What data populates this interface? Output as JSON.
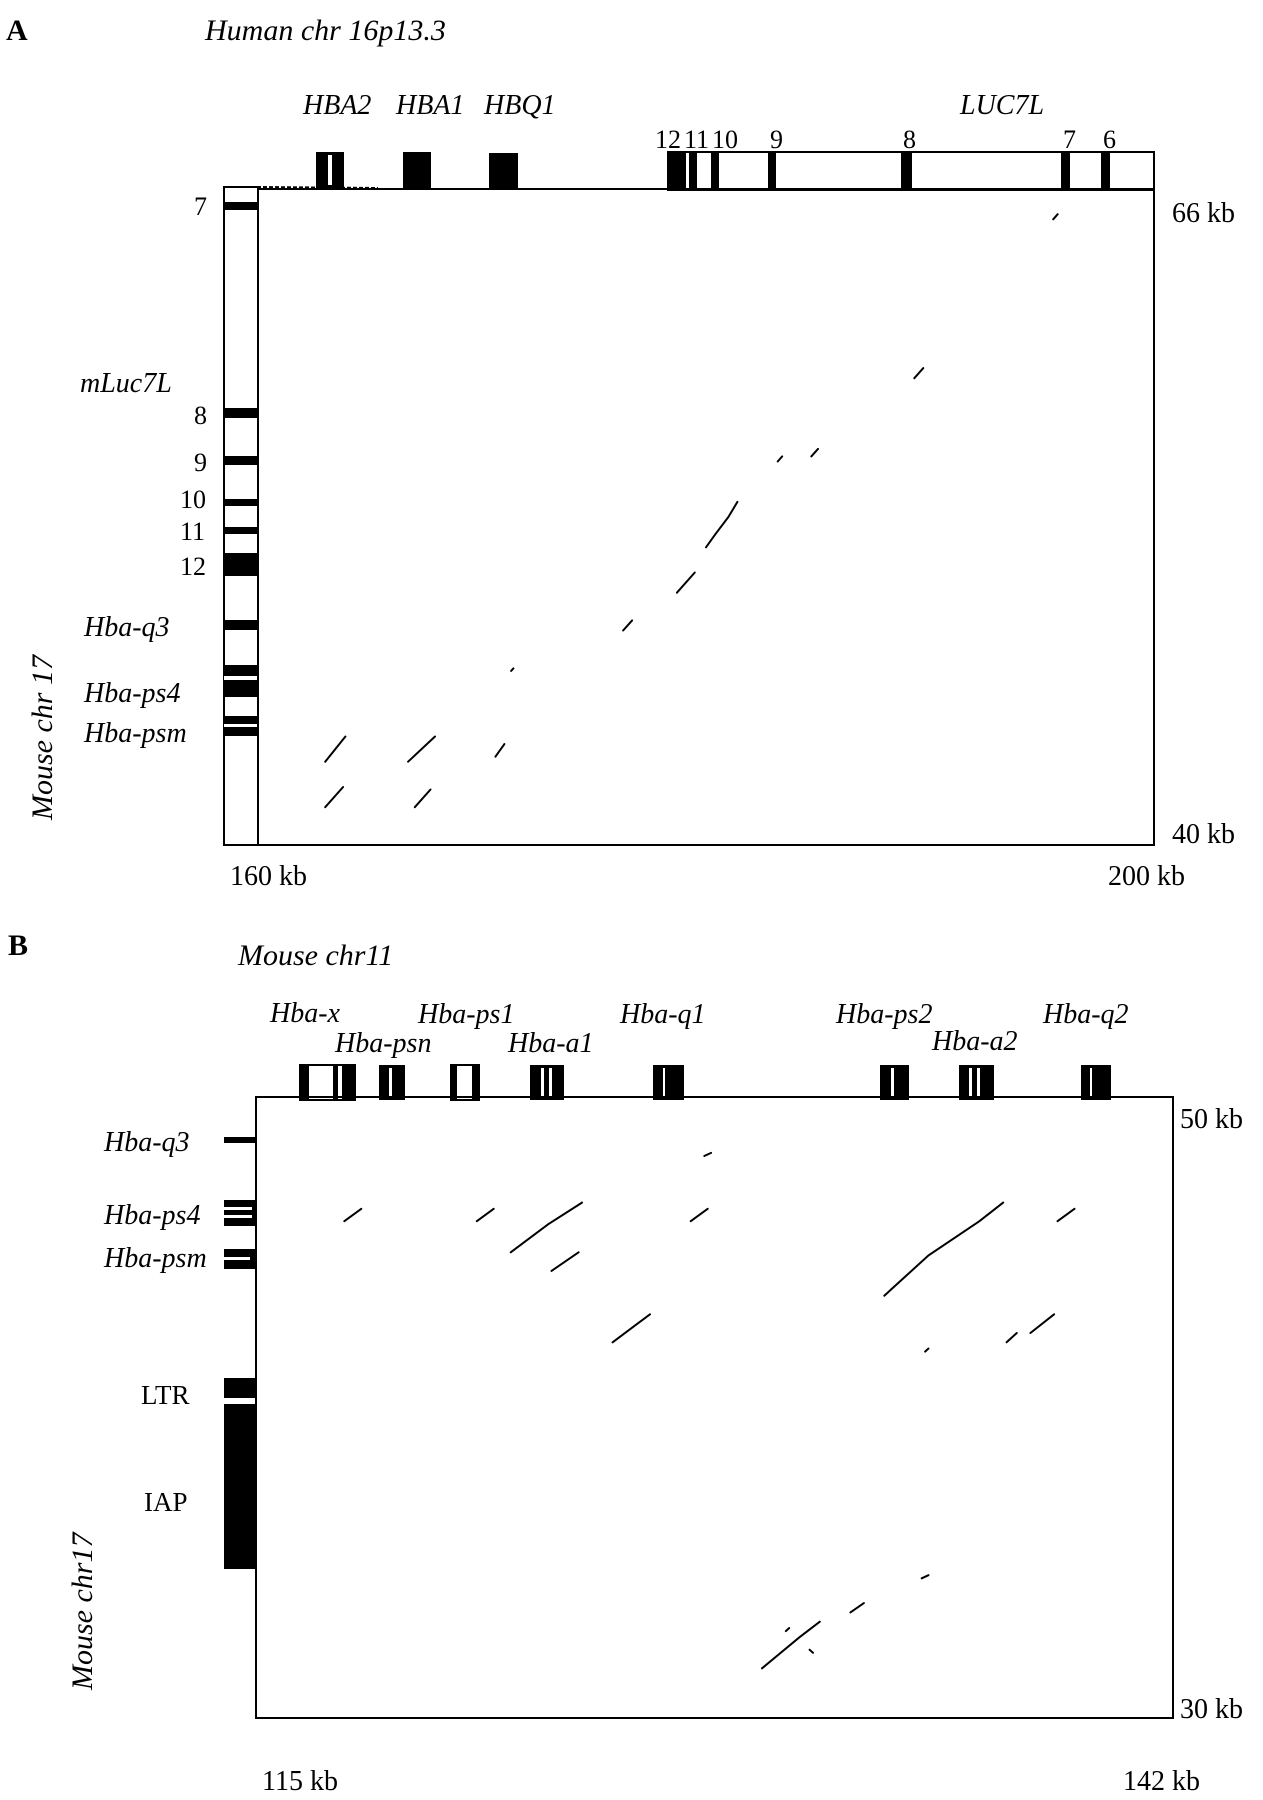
{
  "panelA": {
    "letter": "A",
    "title": "Human chr 16p13.3",
    "ylabel": "Mouse chr 17",
    "x_left": "160 kb",
    "x_right": "200 kb",
    "y_top": "66 kb",
    "y_bottom": "40 kb",
    "genes_top": [
      "HBA2",
      "HBA1",
      "HBQ1"
    ],
    "luc_label": "LUC7L",
    "exon_top": [
      "12",
      "11",
      "10",
      "9",
      "8",
      "7",
      "6"
    ],
    "mluc_label": "mLuc7L",
    "exon_left": [
      "7",
      "8",
      "9",
      "10",
      "11",
      "12"
    ],
    "genes_left": [
      "Hba-q3",
      "Hba-ps4",
      "Hba-psm"
    ]
  },
  "panelB": {
    "letter": "B",
    "title": "Mouse chr11",
    "ylabel": "Mouse chr17",
    "x_left": "115 kb",
    "x_right": "142 kb",
    "y_top": "50 kb",
    "y_bottom": "30 kb",
    "genes_top": [
      "Hba-x",
      "Hba-psn",
      "Hba-ps1",
      "Hba-a1",
      "Hba-q1",
      "Hba-ps2",
      "Hba-a2",
      "Hba-q2"
    ],
    "labels_left": [
      "Hba-q3",
      "Hba-ps4",
      "Hba-psm",
      "LTR",
      "IAP"
    ]
  },
  "chart_data": [
    {
      "type": "scatter",
      "panel": "A",
      "xlim": [
        160,
        200
      ],
      "ylim": [
        40,
        66
      ],
      "segments": [
        [
          [
            195.5,
            64.8
          ],
          [
            195.7,
            65.0
          ]
        ],
        [
          [
            189.3,
            58.5
          ],
          [
            189.7,
            58.9
          ]
        ],
        [
          [
            183.2,
            55.2
          ],
          [
            183.4,
            55.4
          ]
        ],
        [
          [
            184.7,
            55.4
          ],
          [
            185.0,
            55.7
          ]
        ],
        [
          [
            180.0,
            51.8
          ],
          [
            180.4,
            52.3
          ],
          [
            181.0,
            53.0
          ],
          [
            181.4,
            53.6
          ]
        ],
        [
          [
            178.7,
            50.0
          ],
          [
            179.5,
            50.8
          ]
        ],
        [
          [
            176.3,
            48.5
          ],
          [
            176.7,
            48.9
          ]
        ],
        [
          [
            171.3,
            46.9
          ],
          [
            171.4,
            47.0
          ]
        ],
        [
          [
            163.0,
            43.3
          ],
          [
            163.9,
            44.3
          ]
        ],
        [
          [
            166.7,
            43.3
          ],
          [
            167.9,
            44.3
          ]
        ],
        [
          [
            170.6,
            43.5
          ],
          [
            171.0,
            44.0
          ]
        ],
        [
          [
            163.0,
            41.5
          ],
          [
            163.8,
            42.3
          ]
        ],
        [
          [
            167.0,
            41.5
          ],
          [
            167.7,
            42.2
          ]
        ]
      ]
    },
    {
      "type": "scatter",
      "panel": "B",
      "xlim": [
        115,
        142
      ],
      "ylim": [
        30,
        50
      ],
      "segments": [
        [
          [
            128.2,
            48.1
          ],
          [
            128.4,
            48.2
          ]
        ],
        [
          [
            117.6,
            46.0
          ],
          [
            118.1,
            46.4
          ]
        ],
        [
          [
            121.5,
            46.0
          ],
          [
            122.0,
            46.4
          ]
        ],
        [
          [
            127.8,
            46.0
          ],
          [
            128.3,
            46.4
          ]
        ],
        [
          [
            138.6,
            46.0
          ],
          [
            139.1,
            46.4
          ]
        ],
        [
          [
            122.5,
            45.0
          ],
          [
            123.6,
            45.9
          ],
          [
            124.6,
            46.6
          ]
        ],
        [
          [
            123.7,
            44.4
          ],
          [
            124.5,
            45.0
          ]
        ],
        [
          [
            133.5,
            43.6
          ],
          [
            134.8,
            44.9
          ],
          [
            136.3,
            46.0
          ],
          [
            137.0,
            46.6
          ]
        ],
        [
          [
            125.5,
            42.1
          ],
          [
            126.6,
            43.0
          ]
        ],
        [
          [
            137.1,
            42.1
          ],
          [
            137.4,
            42.4
          ]
        ],
        [
          [
            137.8,
            42.4
          ],
          [
            138.5,
            43.0
          ]
        ],
        [
          [
            134.7,
            41.8
          ],
          [
            134.8,
            41.9
          ]
        ],
        [
          [
            134.6,
            34.5
          ],
          [
            134.8,
            34.6
          ]
        ],
        [
          [
            132.5,
            33.4
          ],
          [
            132.9,
            33.7
          ]
        ],
        [
          [
            129.9,
            31.6
          ],
          [
            131.0,
            32.6
          ],
          [
            131.6,
            33.1
          ]
        ],
        [
          [
            130.6,
            32.8
          ],
          [
            130.7,
            32.9
          ]
        ],
        [
          [
            131.3,
            32.2
          ],
          [
            131.4,
            32.1
          ]
        ]
      ]
    }
  ]
}
